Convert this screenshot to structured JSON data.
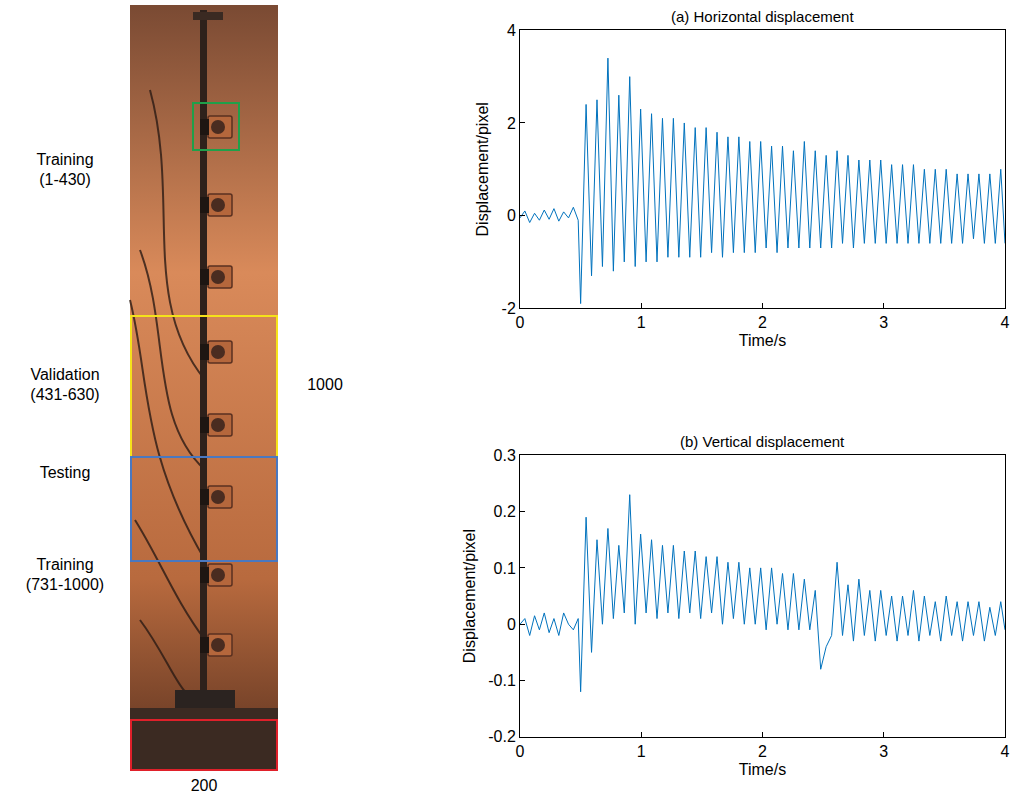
{
  "chart_data": [
    {
      "type": "line",
      "title": "(a) Horizontal displacement",
      "x_label": "Time/s",
      "y_label": "Displacement/pixel",
      "x": [
        0,
        0.04,
        0.08,
        0.12,
        0.16,
        0.2,
        0.24,
        0.28,
        0.32,
        0.36,
        0.4,
        0.44,
        0.48,
        0.5,
        0.545,
        0.59,
        0.635,
        0.68,
        0.725,
        0.77,
        0.815,
        0.86,
        0.905,
        0.95,
        0.995,
        1.04,
        1.085,
        1.13,
        1.175,
        1.22,
        1.265,
        1.31,
        1.355,
        1.4,
        1.445,
        1.49,
        1.535,
        1.58,
        1.625,
        1.67,
        1.715,
        1.76,
        1.805,
        1.85,
        1.895,
        1.94,
        1.985,
        2.03,
        2.075,
        2.12,
        2.165,
        2.21,
        2.255,
        2.3,
        2.345,
        2.39,
        2.435,
        2.48,
        2.525,
        2.57,
        2.615,
        2.66,
        2.705,
        2.75,
        2.795,
        2.84,
        2.885,
        2.93,
        2.975,
        3.02,
        3.065,
        3.11,
        3.155,
        3.2,
        3.245,
        3.29,
        3.335,
        3.38,
        3.425,
        3.47,
        3.515,
        3.56,
        3.605,
        3.65,
        3.695,
        3.74,
        3.785,
        3.83,
        3.875,
        3.92,
        3.965,
        4.0
      ],
      "values": [
        -0.05,
        0.1,
        -0.15,
        0.05,
        -0.1,
        0.12,
        -0.08,
        0.15,
        -0.12,
        0.08,
        -0.05,
        0.18,
        -0.1,
        -1.9,
        2.4,
        -1.3,
        2.5,
        -1.1,
        3.4,
        -1.2,
        2.6,
        -1.0,
        3.0,
        -1.1,
        2.3,
        -1.0,
        2.2,
        -1.0,
        2.1,
        -0.9,
        2.1,
        -0.9,
        2.0,
        -0.9,
        1.9,
        -0.9,
        1.9,
        -0.8,
        1.8,
        -0.9,
        1.7,
        -0.8,
        1.7,
        -0.8,
        1.6,
        -0.8,
        1.6,
        -0.7,
        1.5,
        -0.8,
        1.5,
        -0.7,
        1.4,
        -0.7,
        1.6,
        -0.7,
        1.4,
        -0.7,
        1.3,
        -0.7,
        1.4,
        -0.6,
        1.3,
        -0.7,
        1.2,
        -0.6,
        1.2,
        -0.6,
        1.2,
        -0.6,
        1.1,
        -0.6,
        1.1,
        -0.6,
        1.1,
        -0.6,
        1.0,
        -0.6,
        1.0,
        -0.6,
        1.0,
        -0.6,
        0.9,
        -0.6,
        0.9,
        -0.5,
        0.9,
        -0.6,
        0.9,
        -0.6,
        1.0,
        -0.6
      ],
      "color": "#0072BD",
      "xlim": [
        0,
        4
      ],
      "xticks": [
        0,
        1,
        2,
        3,
        4
      ],
      "ylim": [
        -2,
        4
      ],
      "yticks": [
        -2,
        0,
        2,
        4
      ]
    },
    {
      "type": "line",
      "title": "(b) Vertical displacement",
      "x_label": "Time/s",
      "y_label": "Displacement/pixel",
      "x": [
        0,
        0.04,
        0.08,
        0.12,
        0.16,
        0.2,
        0.24,
        0.28,
        0.32,
        0.36,
        0.4,
        0.44,
        0.48,
        0.5,
        0.545,
        0.59,
        0.635,
        0.68,
        0.725,
        0.77,
        0.815,
        0.86,
        0.905,
        0.95,
        0.995,
        1.04,
        1.085,
        1.13,
        1.175,
        1.22,
        1.265,
        1.31,
        1.355,
        1.4,
        1.445,
        1.49,
        1.535,
        1.58,
        1.625,
        1.67,
        1.715,
        1.76,
        1.805,
        1.85,
        1.895,
        1.94,
        1.985,
        2.03,
        2.075,
        2.12,
        2.165,
        2.21,
        2.255,
        2.3,
        2.345,
        2.39,
        2.435,
        2.48,
        2.525,
        2.57,
        2.615,
        2.66,
        2.705,
        2.75,
        2.795,
        2.84,
        2.885,
        2.93,
        2.975,
        3.02,
        3.065,
        3.11,
        3.155,
        3.2,
        3.245,
        3.29,
        3.335,
        3.38,
        3.425,
        3.47,
        3.515,
        3.56,
        3.605,
        3.65,
        3.695,
        3.74,
        3.785,
        3.83,
        3.875,
        3.92,
        3.965,
        4.0
      ],
      "values": [
        0.0,
        0.01,
        -0.02,
        0.015,
        -0.01,
        0.02,
        -0.015,
        0.01,
        -0.02,
        0.02,
        0.0,
        -0.01,
        0.01,
        -0.12,
        0.19,
        -0.05,
        0.15,
        0.0,
        0.17,
        0.01,
        0.14,
        0.02,
        0.23,
        0.0,
        0.16,
        0.02,
        0.15,
        0.01,
        0.14,
        0.02,
        0.14,
        0.01,
        0.13,
        0.02,
        0.13,
        0.01,
        0.12,
        0.02,
        0.12,
        0.0,
        0.11,
        0.01,
        0.11,
        0.0,
        0.1,
        0.0,
        0.1,
        -0.01,
        0.1,
        0.0,
        0.09,
        -0.01,
        0.09,
        -0.01,
        0.08,
        -0.01,
        0.06,
        -0.08,
        -0.04,
        -0.02,
        0.11,
        -0.02,
        0.07,
        -0.03,
        0.08,
        -0.02,
        0.06,
        -0.03,
        0.06,
        -0.02,
        0.05,
        -0.03,
        0.05,
        -0.02,
        0.06,
        -0.03,
        0.05,
        -0.02,
        0.04,
        -0.03,
        0.05,
        -0.02,
        0.04,
        -0.03,
        0.04,
        -0.02,
        0.04,
        -0.03,
        0.03,
        -0.02,
        0.04,
        -0.01
      ],
      "color": "#0072BD",
      "xlim": [
        0,
        4
      ],
      "xticks": [
        0,
        1,
        2,
        3,
        4
      ],
      "ylim": [
        -0.2,
        0.3
      ],
      "yticks": [
        -0.2,
        -0.1,
        0,
        0.1,
        0.2,
        0.3
      ]
    }
  ],
  "image_panel": {
    "region_labels": [
      "Training (1-430)",
      "Validation (431-630)",
      "Testing",
      "Training (731-1000)"
    ],
    "height_label": "1000",
    "width_label": "200"
  }
}
